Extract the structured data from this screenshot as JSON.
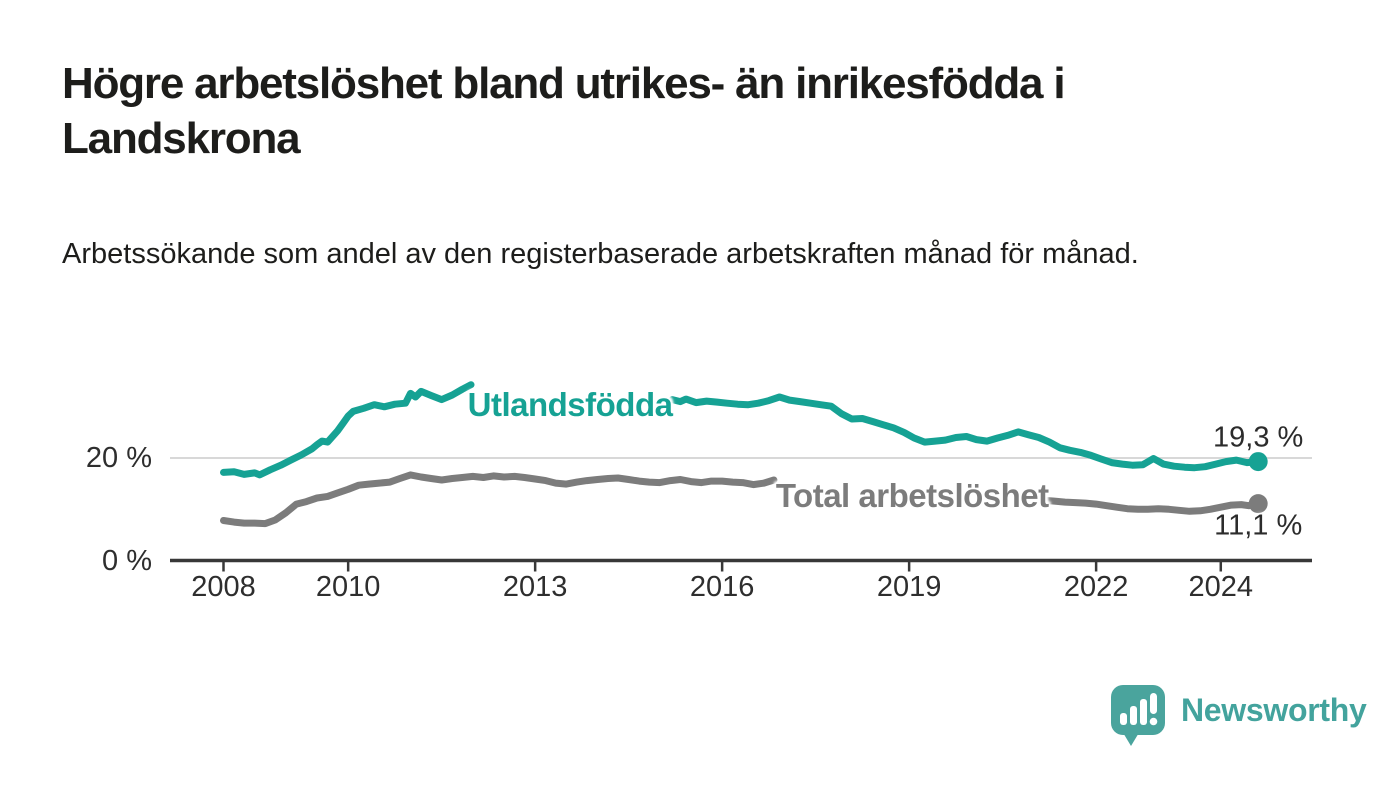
{
  "header": {
    "title": "Högre arbetslöshet bland utrikes- än inrikesfödda i Landskrona",
    "subtitle": "Arbetssökande som andel av den registerbaserade arbetskraften månad för månad."
  },
  "chart_data": {
    "type": "line",
    "unit": "%",
    "x_axis": {
      "tick_years": [
        2008,
        2010,
        2013,
        2016,
        2019,
        2022,
        2024
      ],
      "range": [
        2007.2,
        2025.5
      ]
    },
    "y_axis": {
      "ticks": [
        {
          "value": 20,
          "label": "20 %",
          "gridline": true
        },
        {
          "value": 0,
          "label": "0 %",
          "axis": true
        }
      ],
      "range": [
        0,
        36
      ]
    },
    "colors": {
      "axis": "#383838",
      "grid": "#d8d8d8",
      "text": "#2e2e2e"
    },
    "series": [
      {
        "id": "utlandsfodda",
        "name": "Utlandsfödda",
        "color": "#16a294",
        "label_pos": {
          "year": 2013.56,
          "value": 30.4
        },
        "end_point": {
          "year": 2024.6,
          "value": 19.3
        },
        "end_label": "19,3 %",
        "end_label_side": "above",
        "segments": [
          [
            [
              2008.0,
              17.2
            ],
            [
              2008.17,
              17.3
            ],
            [
              2008.33,
              16.8
            ],
            [
              2008.5,
              17.1
            ],
            [
              2008.58,
              16.7
            ],
            [
              2008.75,
              17.7
            ],
            [
              2008.92,
              18.6
            ],
            [
              2009.08,
              19.6
            ],
            [
              2009.25,
              20.6
            ],
            [
              2009.42,
              21.8
            ],
            [
              2009.5,
              22.6
            ],
            [
              2009.58,
              23.3
            ],
            [
              2009.67,
              23.1
            ],
            [
              2009.83,
              25.3
            ],
            [
              2009.92,
              26.8
            ],
            [
              2010.0,
              28.2
            ],
            [
              2010.08,
              29.1
            ],
            [
              2010.25,
              29.7
            ],
            [
              2010.42,
              30.4
            ],
            [
              2010.58,
              30.0
            ],
            [
              2010.75,
              30.5
            ],
            [
              2010.92,
              30.7
            ],
            [
              2011.0,
              32.6
            ],
            [
              2011.08,
              31.9
            ],
            [
              2011.17,
              33.0
            ],
            [
              2011.33,
              32.2
            ],
            [
              2011.5,
              31.4
            ],
            [
              2011.67,
              32.3
            ],
            [
              2011.83,
              33.4
            ],
            [
              2011.97,
              34.3
            ]
          ],
          [
            [
              2015.2,
              31.4
            ],
            [
              2015.33,
              31.0
            ],
            [
              2015.42,
              31.5
            ],
            [
              2015.58,
              30.8
            ],
            [
              2015.75,
              31.1
            ],
            [
              2015.92,
              30.9
            ],
            [
              2016.08,
              30.7
            ],
            [
              2016.25,
              30.5
            ],
            [
              2016.42,
              30.4
            ],
            [
              2016.58,
              30.7
            ],
            [
              2016.75,
              31.2
            ],
            [
              2016.92,
              31.9
            ],
            [
              2017.08,
              31.3
            ],
            [
              2017.25,
              31.0
            ],
            [
              2017.42,
              30.7
            ],
            [
              2017.58,
              30.4
            ],
            [
              2017.75,
              30.1
            ],
            [
              2017.92,
              28.6
            ],
            [
              2018.08,
              27.6
            ],
            [
              2018.25,
              27.7
            ],
            [
              2018.42,
              27.1
            ],
            [
              2018.58,
              26.5
            ],
            [
              2018.75,
              25.9
            ],
            [
              2018.92,
              25.0
            ],
            [
              2019.08,
              23.9
            ],
            [
              2019.25,
              23.1
            ],
            [
              2019.42,
              23.3
            ],
            [
              2019.58,
              23.5
            ],
            [
              2019.75,
              24.0
            ],
            [
              2019.92,
              24.2
            ],
            [
              2020.08,
              23.6
            ],
            [
              2020.25,
              23.3
            ],
            [
              2020.42,
              23.9
            ],
            [
              2020.58,
              24.4
            ],
            [
              2020.75,
              25.1
            ],
            [
              2020.92,
              24.5
            ],
            [
              2021.08,
              24.0
            ],
            [
              2021.25,
              23.1
            ],
            [
              2021.42,
              22.0
            ],
            [
              2021.58,
              21.5
            ],
            [
              2021.75,
              21.1
            ],
            [
              2021.92,
              20.5
            ],
            [
              2022.08,
              19.8
            ],
            [
              2022.25,
              19.1
            ],
            [
              2022.42,
              18.8
            ],
            [
              2022.58,
              18.6
            ],
            [
              2022.75,
              18.7
            ],
            [
              2022.92,
              19.9
            ],
            [
              2023.08,
              18.8
            ],
            [
              2023.25,
              18.4
            ],
            [
              2023.42,
              18.2
            ],
            [
              2023.58,
              18.1
            ],
            [
              2023.75,
              18.3
            ],
            [
              2023.92,
              18.8
            ],
            [
              2024.08,
              19.3
            ],
            [
              2024.25,
              19.6
            ],
            [
              2024.42,
              19.1
            ],
            [
              2024.6,
              19.3
            ]
          ]
        ]
      },
      {
        "id": "total-arbetsloshet",
        "name": "Total arbetslöshet",
        "color": "#7c7c7c",
        "label_pos": {
          "year": 2019.05,
          "value": 12.5
        },
        "end_point": {
          "year": 2024.6,
          "value": 11.1
        },
        "end_label": "11,1 %",
        "end_label_side": "below",
        "segments": [
          [
            [
              2008.0,
              7.8
            ],
            [
              2008.17,
              7.5
            ],
            [
              2008.33,
              7.3
            ],
            [
              2008.5,
              7.3
            ],
            [
              2008.67,
              7.2
            ],
            [
              2008.83,
              7.9
            ],
            [
              2009.0,
              9.3
            ],
            [
              2009.17,
              11.0
            ],
            [
              2009.33,
              11.5
            ],
            [
              2009.5,
              12.2
            ],
            [
              2009.67,
              12.5
            ],
            [
              2009.83,
              13.2
            ],
            [
              2010.0,
              13.9
            ],
            [
              2010.17,
              14.7
            ],
            [
              2010.33,
              14.9
            ],
            [
              2010.5,
              15.1
            ],
            [
              2010.67,
              15.3
            ],
            [
              2010.83,
              16.0
            ],
            [
              2011.0,
              16.7
            ],
            [
              2011.17,
              16.3
            ],
            [
              2011.33,
              16.0
            ],
            [
              2011.5,
              15.7
            ],
            [
              2011.67,
              16.0
            ],
            [
              2011.83,
              16.2
            ],
            [
              2012.0,
              16.4
            ],
            [
              2012.17,
              16.2
            ],
            [
              2012.33,
              16.5
            ],
            [
              2012.5,
              16.3
            ],
            [
              2012.67,
              16.4
            ],
            [
              2012.83,
              16.2
            ],
            [
              2013.0,
              15.9
            ],
            [
              2013.17,
              15.6
            ],
            [
              2013.33,
              15.1
            ],
            [
              2013.5,
              14.9
            ],
            [
              2013.67,
              15.3
            ],
            [
              2013.83,
              15.6
            ],
            [
              2014.0,
              15.8
            ],
            [
              2014.17,
              16.0
            ],
            [
              2014.33,
              16.1
            ],
            [
              2014.5,
              15.8
            ],
            [
              2014.67,
              15.5
            ],
            [
              2014.83,
              15.3
            ],
            [
              2015.0,
              15.2
            ],
            [
              2015.17,
              15.6
            ],
            [
              2015.33,
              15.8
            ],
            [
              2015.5,
              15.4
            ],
            [
              2015.67,
              15.2
            ],
            [
              2015.83,
              15.5
            ],
            [
              2016.0,
              15.5
            ],
            [
              2016.17,
              15.3
            ],
            [
              2016.33,
              15.2
            ],
            [
              2016.5,
              14.8
            ],
            [
              2016.67,
              15.1
            ],
            [
              2016.83,
              15.7
            ]
          ],
          [
            [
              2021.2,
              11.7
            ],
            [
              2021.33,
              11.6
            ],
            [
              2021.5,
              11.4
            ],
            [
              2021.67,
              11.3
            ],
            [
              2021.83,
              11.2
            ],
            [
              2022.0,
              11.0
            ],
            [
              2022.17,
              10.7
            ],
            [
              2022.33,
              10.4
            ],
            [
              2022.5,
              10.1
            ],
            [
              2022.67,
              10.0
            ],
            [
              2022.83,
              10.0
            ],
            [
              2023.0,
              10.1
            ],
            [
              2023.17,
              10.0
            ],
            [
              2023.33,
              9.8
            ],
            [
              2023.5,
              9.6
            ],
            [
              2023.67,
              9.7
            ],
            [
              2023.83,
              10.0
            ],
            [
              2024.0,
              10.4
            ],
            [
              2024.17,
              10.8
            ],
            [
              2024.33,
              10.9
            ],
            [
              2024.45,
              10.7
            ],
            [
              2024.6,
              11.1
            ]
          ]
        ]
      }
    ]
  },
  "footer": {
    "brand": "Newsworthy"
  }
}
